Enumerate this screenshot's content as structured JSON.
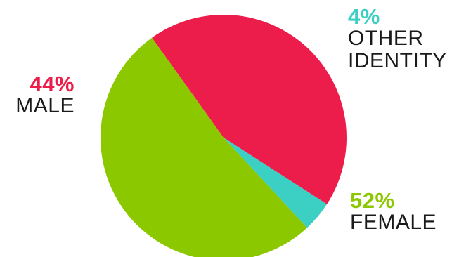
{
  "chart_data": {
    "type": "pie",
    "slices": [
      {
        "label": "MALE",
        "value": 44,
        "display": "44%",
        "color": "#ec1c4b"
      },
      {
        "label": "OTHER IDENTITY",
        "value": 4,
        "display": "4%",
        "color": "#3ccfc3"
      },
      {
        "label": "FEMALE",
        "value": 52,
        "display": "52%",
        "color": "#8cc800"
      }
    ],
    "legend": "none"
  },
  "labels": {
    "other": {
      "pct": "4%",
      "line1": "OTHER",
      "line2": "IDENTITY"
    },
    "male": {
      "pct": "44%",
      "line1": "MALE"
    },
    "female": {
      "pct": "52%",
      "line1": "FEMALE"
    }
  }
}
